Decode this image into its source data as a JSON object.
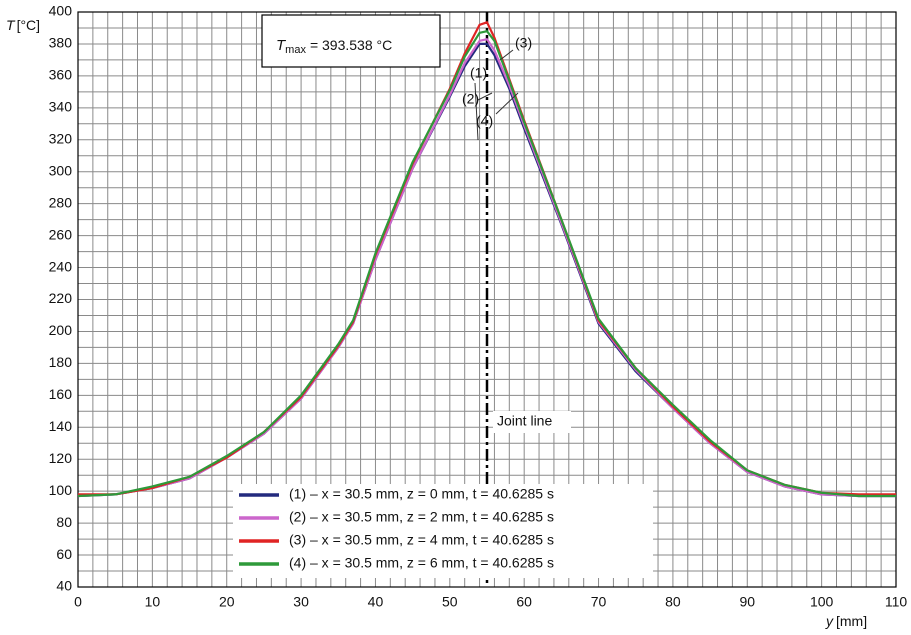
{
  "chart_data": {
    "type": "line",
    "ylabel_symbol": "T",
    "ylabel_unit": "[°C]",
    "xlabel_symbol": "y",
    "xlabel_unit": "[mm]",
    "x": [
      0,
      5,
      10,
      15,
      20,
      25,
      30,
      35,
      37,
      40,
      45,
      50,
      52,
      54,
      55,
      56,
      58,
      60,
      65,
      70,
      75,
      80,
      85,
      90,
      95,
      100,
      105,
      110
    ],
    "series": [
      {
        "name": "(1) – x = 30.5 mm, z = 0 mm, t = 40.6285 s",
        "label": "(1)",
        "color": "#232a7e",
        "values": [
          97,
          98,
          102,
          108,
          121,
          136,
          158,
          190,
          205,
          245,
          302,
          347,
          366,
          380,
          380,
          373,
          352,
          327,
          267,
          205,
          175,
          152,
          130,
          112,
          103,
          98,
          97,
          97
        ]
      },
      {
        "name": "(2) – x = 30.5 mm, z = 2 mm, t = 40.6285 s",
        "label": "(2)",
        "color": "#cc66cc",
        "values": [
          97,
          98,
          102,
          108,
          121,
          136,
          158,
          190,
          205,
          245,
          302,
          348,
          368,
          382,
          383,
          376,
          354,
          329,
          268,
          206,
          176,
          152,
          130,
          112,
          103,
          98,
          97,
          97
        ]
      },
      {
        "name": "(3) – x = 30.5 mm, z = 4 mm, t = 40.6285 s",
        "label": "(3)",
        "color": "#e02424",
        "values": [
          98,
          98,
          102,
          109,
          121,
          137,
          159,
          191,
          206,
          248,
          305,
          352,
          374,
          392,
          393.538,
          384,
          358,
          332,
          270,
          207,
          177,
          153,
          131,
          113,
          104,
          99,
          98,
          98
        ]
      },
      {
        "name": "(4) – x = 30.5 mm, z = 6 mm, t = 40.6285 s",
        "label": "(4)",
        "color": "#2e9a3a",
        "values": [
          97,
          98,
          103,
          109,
          122,
          137,
          160,
          192,
          207,
          249,
          306,
          351,
          372,
          387,
          388,
          382,
          357,
          331,
          270,
          208,
          177,
          154,
          132,
          113,
          104,
          99,
          97,
          97
        ]
      }
    ],
    "xlim": [
      0,
      110
    ],
    "ylim": [
      40,
      400
    ],
    "xticks": [
      0,
      10,
      20,
      30,
      40,
      50,
      60,
      70,
      80,
      90,
      100,
      110
    ],
    "yticks": [
      40,
      60,
      80,
      100,
      120,
      140,
      160,
      180,
      200,
      220,
      240,
      260,
      280,
      300,
      320,
      340,
      360,
      380,
      400
    ],
    "grid": true,
    "xminor_divisions": 5,
    "yminor_divisions": 2,
    "annotation": {
      "symbol": "T",
      "subscript": "max",
      "text": "= 393.538 °C"
    },
    "joint_line": {
      "x": 55,
      "label": "Joint line"
    },
    "legend": "lower center"
  }
}
